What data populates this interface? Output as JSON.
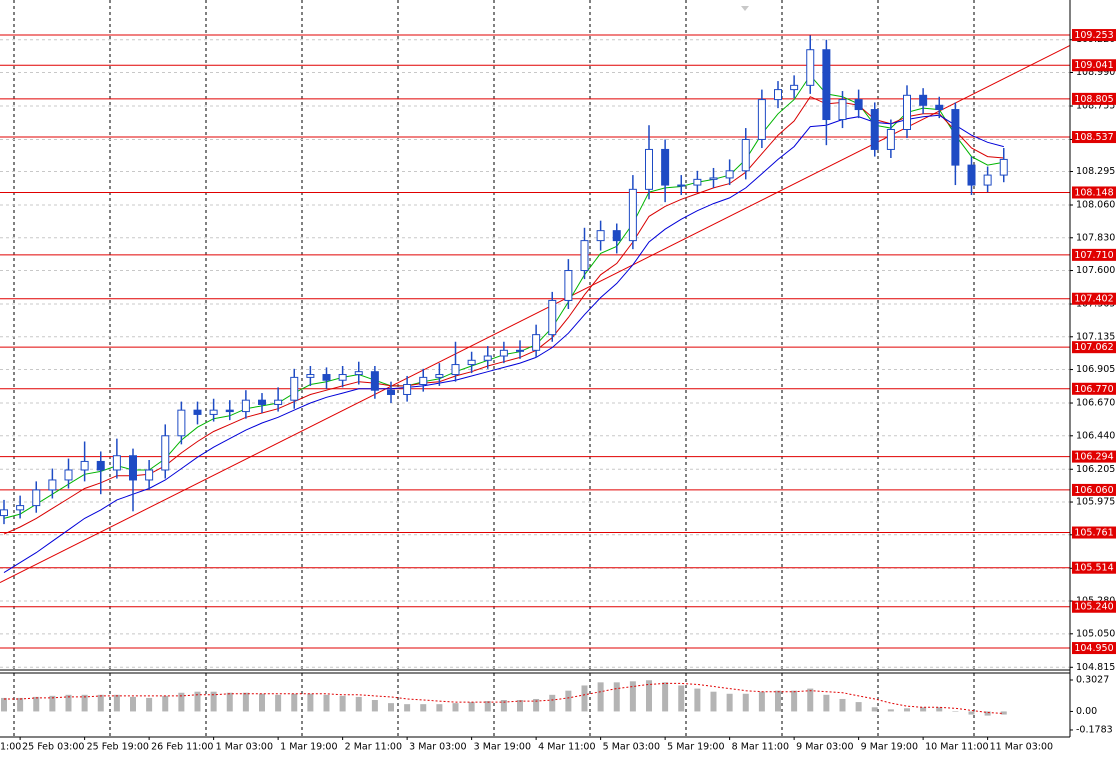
{
  "chart_data": {
    "type": "candlestick",
    "categories": [
      null,
      "25 Feb 03:00",
      null,
      null,
      null,
      "25 Feb 19:00",
      null,
      null,
      null,
      "26 Feb 11:00",
      null,
      null,
      null,
      "1 Mar 03:00",
      null,
      null,
      null,
      "1 Mar 19:00",
      null,
      null,
      null,
      "2 Mar 11:00",
      null,
      null,
      null,
      "3 Mar 03:00",
      null,
      null,
      null,
      "3 Mar 19:00",
      null,
      null,
      null,
      "4 Mar 11:00",
      null,
      null,
      null,
      "5 Mar 03:00",
      null,
      null,
      null,
      "5 Mar 19:00",
      null,
      null,
      null,
      "8 Mar 11:00",
      null,
      null,
      null,
      "9 Mar 03:00",
      null,
      null,
      null,
      "9 Mar 19:00",
      null,
      null,
      null,
      "10 Mar 11:00",
      null,
      null,
      null,
      "11 Mar 03:00",
      null
    ],
    "partial_x_label": "1:00",
    "open": [
      105.88,
      105.92,
      105.95,
      106.06,
      106.13,
      106.2,
      106.26,
      106.2,
      106.3,
      106.13,
      106.2,
      106.44,
      106.62,
      106.59,
      106.62,
      106.61,
      106.69,
      106.66,
      106.69,
      106.85,
      106.87,
      106.83,
      106.87,
      106.89,
      106.76,
      106.73,
      106.8,
      106.85,
      106.87,
      106.94,
      106.97,
      107.0,
      107.04,
      107.04,
      107.15,
      107.39,
      107.6,
      107.81,
      107.88,
      107.81,
      108.17,
      108.45,
      108.2,
      108.2,
      108.24,
      108.25,
      108.3,
      108.52,
      108.8,
      108.87,
      108.9,
      109.15,
      108.66,
      108.8,
      108.73,
      108.45,
      108.59,
      108.83,
      108.76,
      108.73,
      108.34,
      108.2,
      108.27
    ],
    "high": [
      105.99,
      106.02,
      106.12,
      106.21,
      106.28,
      106.4,
      106.33,
      106.42,
      106.35,
      106.27,
      106.52,
      106.68,
      106.68,
      106.7,
      106.69,
      106.76,
      106.74,
      106.78,
      106.91,
      106.93,
      106.92,
      106.93,
      106.96,
      106.93,
      106.82,
      106.86,
      106.91,
      106.95,
      107.1,
      107.03,
      107.07,
      107.1,
      107.11,
      107.22,
      107.45,
      107.68,
      107.9,
      107.95,
      107.93,
      108.27,
      108.62,
      108.52,
      108.27,
      108.3,
      108.32,
      108.38,
      108.6,
      108.87,
      108.93,
      108.97,
      109.25,
      109.22,
      108.86,
      108.87,
      108.78,
      108.66,
      108.9,
      108.88,
      108.82,
      108.78,
      108.4,
      108.33,
      108.46
    ],
    "low": [
      105.82,
      105.86,
      105.9,
      106.0,
      106.07,
      106.12,
      106.03,
      106.14,
      105.91,
      106.06,
      106.14,
      106.38,
      106.52,
      106.54,
      106.55,
      106.56,
      106.6,
      106.61,
      106.63,
      106.79,
      106.77,
      106.78,
      106.8,
      106.7,
      106.67,
      106.68,
      106.75,
      106.79,
      106.82,
      106.88,
      106.91,
      106.95,
      106.98,
      106.99,
      107.1,
      107.33,
      107.54,
      107.74,
      107.72,
      107.75,
      108.1,
      108.08,
      108.13,
      108.15,
      108.18,
      108.2,
      108.24,
      108.46,
      108.74,
      108.81,
      108.84,
      108.48,
      108.6,
      108.67,
      108.4,
      108.39,
      108.53,
      108.7,
      108.67,
      108.2,
      108.13,
      108.15,
      108.22
    ],
    "close": [
      105.92,
      105.95,
      106.06,
      106.13,
      106.2,
      106.26,
      106.2,
      106.3,
      106.13,
      106.2,
      106.44,
      106.62,
      106.59,
      106.62,
      106.61,
      106.69,
      106.66,
      106.69,
      106.85,
      106.87,
      106.83,
      106.87,
      106.89,
      106.76,
      106.73,
      106.8,
      106.85,
      106.87,
      106.94,
      106.97,
      107.0,
      107.04,
      107.04,
      107.15,
      107.39,
      107.6,
      107.81,
      107.88,
      107.81,
      108.17,
      108.45,
      108.2,
      108.2,
      108.24,
      108.25,
      108.3,
      108.52,
      108.8,
      108.87,
      108.9,
      109.15,
      108.66,
      108.8,
      108.73,
      108.45,
      108.59,
      108.83,
      108.76,
      108.73,
      108.34,
      108.2,
      108.27,
      108.38
    ],
    "color": "#1e4bc4",
    "series": [
      {
        "color": "#00b400",
        "values": [
          105.86,
          105.89,
          105.96,
          106.03,
          106.1,
          106.17,
          106.19,
          106.23,
          106.2,
          106.2,
          106.28,
          106.41,
          106.5,
          106.56,
          106.58,
          106.63,
          106.65,
          106.67,
          106.74,
          106.8,
          106.82,
          106.85,
          106.87,
          106.83,
          106.79,
          106.79,
          106.82,
          106.84,
          106.89,
          106.93,
          106.97,
          107.01,
          107.03,
          107.08,
          107.2,
          107.38,
          107.57,
          107.72,
          107.77,
          107.93,
          108.15,
          108.18,
          108.19,
          108.22,
          108.24,
          108.27,
          108.38,
          108.56,
          108.7,
          108.8,
          108.97,
          108.84,
          108.82,
          108.77,
          108.62,
          108.6,
          108.71,
          108.74,
          108.73,
          108.55,
          108.4,
          108.34,
          108.36
        ]
      },
      {
        "color": "#d80000",
        "values": [
          105.75,
          105.8,
          105.86,
          105.93,
          106.0,
          106.07,
          106.11,
          106.16,
          106.16,
          106.17,
          106.23,
          106.32,
          106.4,
          106.47,
          106.52,
          106.57,
          106.6,
          106.63,
          106.68,
          106.73,
          106.76,
          106.79,
          106.82,
          106.81,
          106.79,
          106.79,
          106.81,
          106.82,
          106.86,
          106.89,
          106.93,
          106.96,
          106.99,
          107.04,
          107.13,
          107.27,
          107.43,
          107.57,
          107.65,
          107.8,
          107.98,
          108.05,
          108.1,
          108.14,
          108.18,
          108.21,
          108.29,
          108.42,
          108.55,
          108.65,
          108.82,
          108.77,
          108.78,
          108.76,
          108.66,
          108.63,
          108.68,
          108.7,
          108.7,
          108.58,
          108.46,
          108.4,
          108.39
        ]
      },
      {
        "color": "#0000d8",
        "values": [
          105.48,
          105.55,
          105.62,
          105.7,
          105.78,
          105.86,
          105.92,
          105.99,
          106.03,
          106.07,
          106.13,
          106.21,
          106.29,
          106.36,
          106.42,
          106.48,
          106.53,
          106.57,
          106.62,
          106.67,
          106.71,
          106.74,
          106.77,
          106.77,
          106.77,
          106.78,
          106.79,
          106.81,
          106.83,
          106.86,
          106.89,
          106.92,
          106.95,
          106.99,
          107.06,
          107.16,
          107.29,
          107.41,
          107.51,
          107.64,
          107.8,
          107.89,
          107.96,
          108.02,
          108.07,
          108.11,
          108.18,
          108.28,
          108.38,
          108.47,
          108.61,
          108.62,
          108.66,
          108.68,
          108.64,
          108.63,
          108.66,
          108.68,
          108.69,
          108.62,
          108.55,
          108.5,
          108.47
        ]
      }
    ],
    "levels": [
      109.253,
      109.041,
      108.805,
      108.537,
      108.148,
      {
        "value": 107.71,
        "label": "107.710"
      },
      107.402,
      107.062,
      {
        "value": 106.77,
        "label": "106.770"
      },
      106.294,
      {
        "value": 106.06,
        "label": "106.060"
      },
      105.761,
      105.514,
      {
        "value": 105.24,
        "label": "105.240"
      },
      {
        "value": 104.95,
        "label": "104.950"
      }
    ],
    "level_color": "#e00000",
    "trendline": [
      105.41,
      109.18
    ],
    "ylim": [
      104.796,
      109.499
    ],
    "yticks": [
      {
        "value": 109.22,
        "label": "109.220"
      },
      {
        "value": 108.99,
        "label": "108.990"
      },
      108.755,
      {
        "value": 108.52,
        "label": "108.520"
      },
      108.295,
      {
        "value": 108.06,
        "label": "108.060"
      },
      {
        "value": 107.83,
        "label": "107.830"
      },
      {
        "value": 107.6,
        "label": "107.600"
      },
      107.365,
      107.135,
      106.905,
      {
        "value": 106.67,
        "label": "106.670"
      },
      {
        "value": 106.44,
        "label": "106.440"
      },
      106.205,
      105.975,
      105.745,
      {
        "value": 105.51,
        "label": "105.510"
      },
      {
        "value": 105.28,
        "label": "105.280"
      },
      {
        "value": 105.05,
        "label": "105.050"
      },
      104.815
    ],
    "grid": true,
    "oscillator": {
      "type": "histogram",
      "color": "#b4b4b4",
      "values": [
        0.13,
        0.13,
        0.14,
        0.15,
        0.16,
        0.16,
        0.16,
        0.16,
        0.14,
        0.13,
        0.15,
        0.18,
        0.19,
        0.19,
        0.18,
        0.18,
        0.17,
        0.16,
        0.17,
        0.17,
        0.16,
        0.15,
        0.14,
        0.11,
        0.08,
        0.07,
        0.07,
        0.07,
        0.08,
        0.09,
        0.1,
        0.11,
        0.11,
        0.12,
        0.16,
        0.2,
        0.25,
        0.28,
        0.28,
        0.29,
        0.3,
        0.28,
        0.25,
        0.22,
        0.19,
        0.17,
        0.17,
        0.19,
        0.2,
        0.2,
        0.22,
        0.16,
        0.12,
        0.09,
        0.04,
        0.02,
        0.03,
        0.04,
        0.04,
        0.0,
        -0.03,
        -0.04,
        -0.03
      ],
      "signal": {
        "color": "#e00000",
        "values": [
          0.12,
          0.12,
          0.13,
          0.13,
          0.14,
          0.14,
          0.15,
          0.15,
          0.15,
          0.15,
          0.15,
          0.15,
          0.16,
          0.16,
          0.17,
          0.17,
          0.17,
          0.17,
          0.17,
          0.17,
          0.17,
          0.16,
          0.16,
          0.15,
          0.14,
          0.12,
          0.11,
          0.1,
          0.09,
          0.09,
          0.09,
          0.09,
          0.1,
          0.1,
          0.11,
          0.13,
          0.16,
          0.19,
          0.22,
          0.24,
          0.26,
          0.27,
          0.27,
          0.26,
          0.24,
          0.22,
          0.2,
          0.19,
          0.19,
          0.19,
          0.2,
          0.19,
          0.18,
          0.15,
          0.12,
          0.08,
          0.05,
          0.04,
          0.04,
          0.03,
          0.01,
          -0.01,
          -0.02
        ]
      },
      "ylim": [
        -0.246,
        0.37
      ],
      "yticks": [
        0.3027,
        {
          "value": 0,
          "label": "0.00"
        },
        -0.1783
      ]
    }
  }
}
